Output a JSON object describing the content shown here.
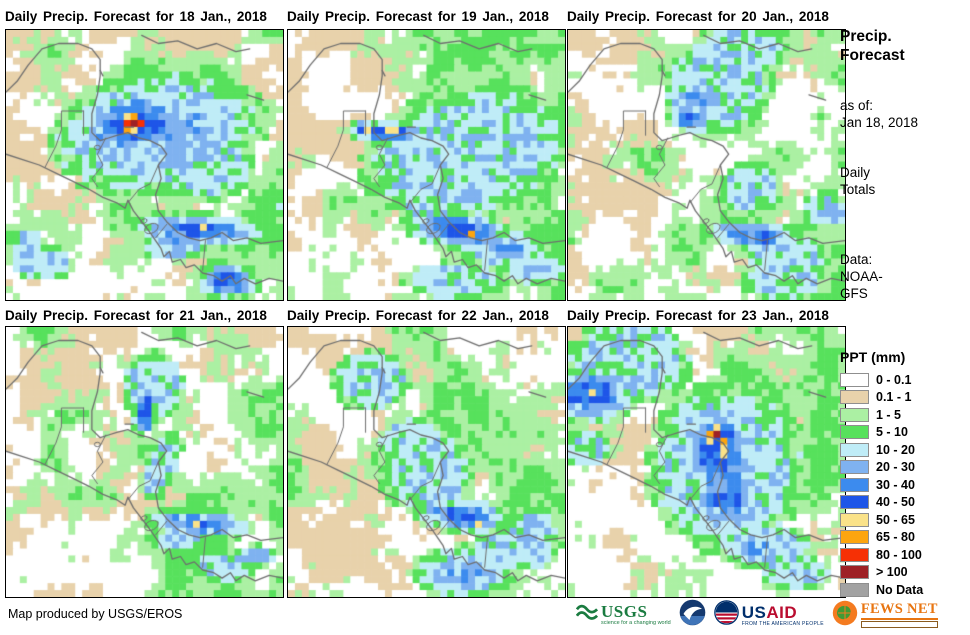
{
  "panels": [
    {
      "title": "Daily Precip. Forecast for 18 Jan., 2018",
      "seed": 11,
      "precip_blobs": [
        [
          46,
          35,
          5,
          4,
          11,
          0
        ],
        [
          46,
          35,
          10,
          7,
          9,
          -10
        ],
        [
          47,
          35,
          17,
          10,
          7,
          -5
        ],
        [
          55,
          38,
          27,
          16,
          5,
          -10
        ],
        [
          70,
          50,
          14,
          10,
          4,
          0
        ],
        [
          70,
          74,
          18,
          4.5,
          7,
          3
        ],
        [
          80,
          93,
          9,
          5,
          7,
          0
        ],
        [
          60,
          80,
          8,
          4,
          5,
          0
        ],
        [
          13,
          86,
          8,
          5,
          5,
          0
        ],
        [
          7,
          78,
          5,
          3,
          4,
          0
        ]
      ]
    },
    {
      "title": "Daily Precip. Forecast for 19 Jan., 2018",
      "seed": 22,
      "precip_blobs": [
        [
          37,
          38,
          13,
          3,
          7,
          2
        ],
        [
          28,
          37,
          4,
          2.5,
          8,
          0
        ],
        [
          64,
          46,
          26,
          17,
          4,
          -12
        ],
        [
          52,
          62,
          8,
          10,
          4,
          10
        ],
        [
          62,
          74,
          15,
          5,
          7,
          6
        ],
        [
          67,
          76,
          6,
          2.5,
          8,
          38
        ],
        [
          77,
          81,
          11,
          5,
          5,
          0
        ],
        [
          60,
          93,
          13,
          5,
          4,
          0
        ],
        [
          90,
          88,
          8,
          5,
          5,
          0
        ]
      ]
    },
    {
      "title": "Daily Precip. Forecast for 20 Jan., 2018",
      "seed": 33,
      "precip_blobs": [
        [
          55,
          20,
          13,
          13,
          4,
          0
        ],
        [
          62,
          8,
          12,
          7,
          4,
          0
        ],
        [
          44,
          33,
          6,
          4,
          7,
          15
        ],
        [
          47,
          27,
          9,
          7,
          5,
          10
        ],
        [
          67,
          76,
          13,
          4,
          6,
          4
        ],
        [
          72,
          77,
          4,
          2,
          9,
          0
        ],
        [
          79,
          84,
          11,
          6,
          4,
          0
        ],
        [
          66,
          58,
          8,
          7,
          4,
          0
        ],
        [
          77,
          93,
          11,
          5,
          4,
          0
        ],
        [
          93,
          67,
          6,
          5,
          4,
          0
        ]
      ]
    },
    {
      "title": "Daily Precip. Forecast for 21 Jan., 2018",
      "seed": 44,
      "precip_blobs": [
        [
          50,
          31,
          3,
          8,
          7,
          18
        ],
        [
          50,
          36,
          2.2,
          2.2,
          9,
          0
        ],
        [
          53,
          22,
          8,
          9,
          4,
          12
        ],
        [
          56,
          52,
          4,
          10,
          4,
          22
        ],
        [
          70,
          73,
          15,
          4,
          6,
          4
        ],
        [
          70,
          74,
          4,
          2.5,
          8,
          0
        ],
        [
          90,
          85,
          5,
          3,
          5,
          0
        ],
        [
          79,
          89,
          8,
          4,
          4,
          0
        ],
        [
          63,
          79,
          6,
          3,
          4,
          0
        ]
      ]
    },
    {
      "title": "Daily Precip. Forecast for 22 Jan., 2018",
      "seed": 55,
      "precip_blobs": [
        [
          50,
          54,
          12,
          11,
          4,
          0
        ],
        [
          44,
          42,
          8,
          6,
          4,
          0
        ],
        [
          63,
          70,
          13,
          4.5,
          7,
          5
        ],
        [
          69,
          72,
          3,
          2.2,
          9,
          0
        ],
        [
          63,
          91,
          13,
          7,
          5,
          0
        ],
        [
          82,
          82,
          12,
          6,
          4,
          0
        ],
        [
          89,
          74,
          6,
          4,
          5,
          0
        ],
        [
          30,
          20,
          10,
          8,
          4,
          0
        ]
      ]
    },
    {
      "title": "Daily Precip. Forecast for 23 Jan., 2018",
      "seed": 66,
      "precip_blobs": [
        [
          9,
          25,
          11,
          8,
          7,
          0
        ],
        [
          3,
          26,
          6,
          3,
          8,
          0
        ],
        [
          22,
          13,
          16,
          11,
          4,
          0
        ],
        [
          53,
          40,
          3,
          6,
          10,
          35
        ],
        [
          54,
          42,
          7,
          9,
          8,
          30
        ],
        [
          54,
          47,
          11,
          12,
          7,
          10
        ],
        [
          57,
          62,
          10,
          13,
          6,
          4
        ],
        [
          60,
          64,
          4,
          4,
          8,
          0
        ],
        [
          57,
          52,
          20,
          22,
          4,
          0
        ],
        [
          71,
          81,
          12,
          6,
          5,
          0
        ],
        [
          82,
          91,
          9,
          5,
          4,
          0
        ],
        [
          7,
          45,
          6,
          5,
          4,
          0
        ]
      ]
    }
  ],
  "sidebar": {
    "title": "Precip.\nForecast",
    "as_of": "as of:\nJan 18, 2018",
    "totals": "Daily\nTotals",
    "data_source": "Data:\nNOAA-\nGFS"
  },
  "legend": {
    "title": "PPT (mm)",
    "items": [
      {
        "label": "0 - 0.1",
        "color": "#ffffff"
      },
      {
        "label": "0.1 - 1",
        "color": "#e8d2ab"
      },
      {
        "label": "1 - 5",
        "color": "#abf0a3"
      },
      {
        "label": "5 - 10",
        "color": "#57e15c"
      },
      {
        "label": "10 - 20",
        "color": "#bfecf7"
      },
      {
        "label": "20 - 30",
        "color": "#7fb2f0"
      },
      {
        "label": "30 - 40",
        "color": "#3c8bee"
      },
      {
        "label": "40 - 50",
        "color": "#1e55e8"
      },
      {
        "label": "50 - 65",
        "color": "#fae289"
      },
      {
        "label": "65 - 80",
        "color": "#fca50f"
      },
      {
        "label": "80 - 100",
        "color": "#f63005"
      },
      {
        "label": "> 100",
        "color": "#9e2126"
      },
      {
        "label": "No Data",
        "color": "#a2a2a2"
      }
    ]
  },
  "map_style": {
    "coastline_color": "#6e6e6e",
    "panel_border_color": "#000000"
  },
  "footer": {
    "credit": "Map produced by USGS/EROS",
    "logos": {
      "usgs": {
        "text": "USGS",
        "tagline": "science for a changing world",
        "color": "#1a7b40"
      },
      "noaa": {
        "name": "NOAA",
        "color": "#15396f"
      },
      "usaid": {
        "text_us": "US",
        "text_aid": "AID",
        "tagline": "FROM THE AMERICAN PEOPLE",
        "color_blue": "#002f6c",
        "color_red": "#ba0c2f"
      },
      "fewsnet": {
        "text": "FEWS NET",
        "color": "#e87511"
      }
    }
  }
}
